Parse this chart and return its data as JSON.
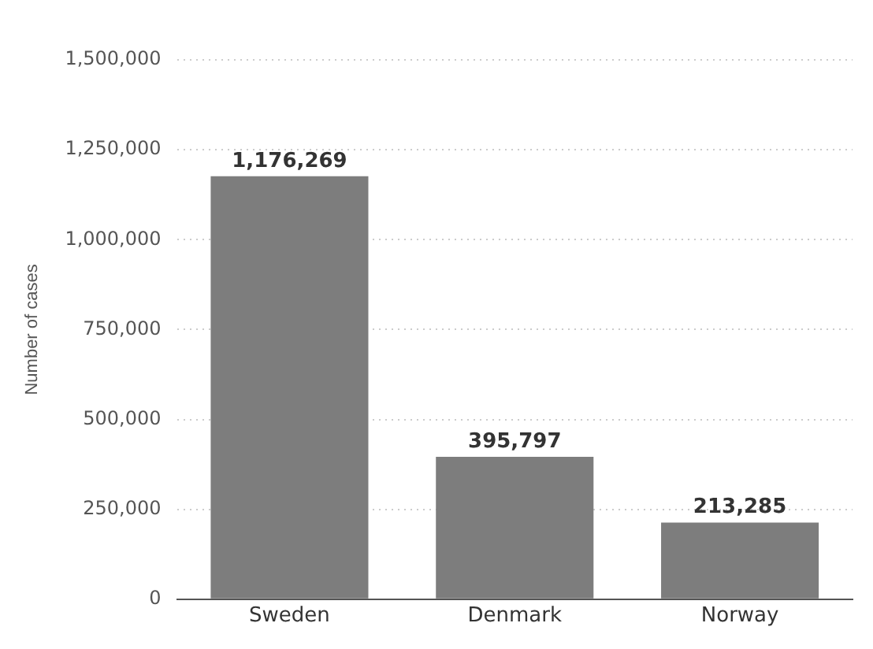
{
  "chart_data": {
    "type": "bar",
    "ylabel": "Number of cases",
    "categories": [
      "Sweden",
      "Denmark",
      "Norway"
    ],
    "values": [
      1176269,
      395797,
      213285
    ],
    "value_labels": [
      "1,176,269",
      "395,797",
      "213,285"
    ],
    "color": "#7d7d7d",
    "ylim": [
      0,
      1500000
    ],
    "yticks": [
      0,
      {
        "value": 250000,
        "label": "250,000"
      },
      {
        "value": 500000,
        "label": "500,000"
      },
      {
        "value": 750000,
        "label": "750,000"
      },
      {
        "value": 1000000,
        "label": "1,000,000"
      },
      {
        "value": 1250000,
        "label": "1,250,000"
      },
      {
        "value": 1500000,
        "label": "1,500,000"
      }
    ],
    "grid": "y"
  }
}
